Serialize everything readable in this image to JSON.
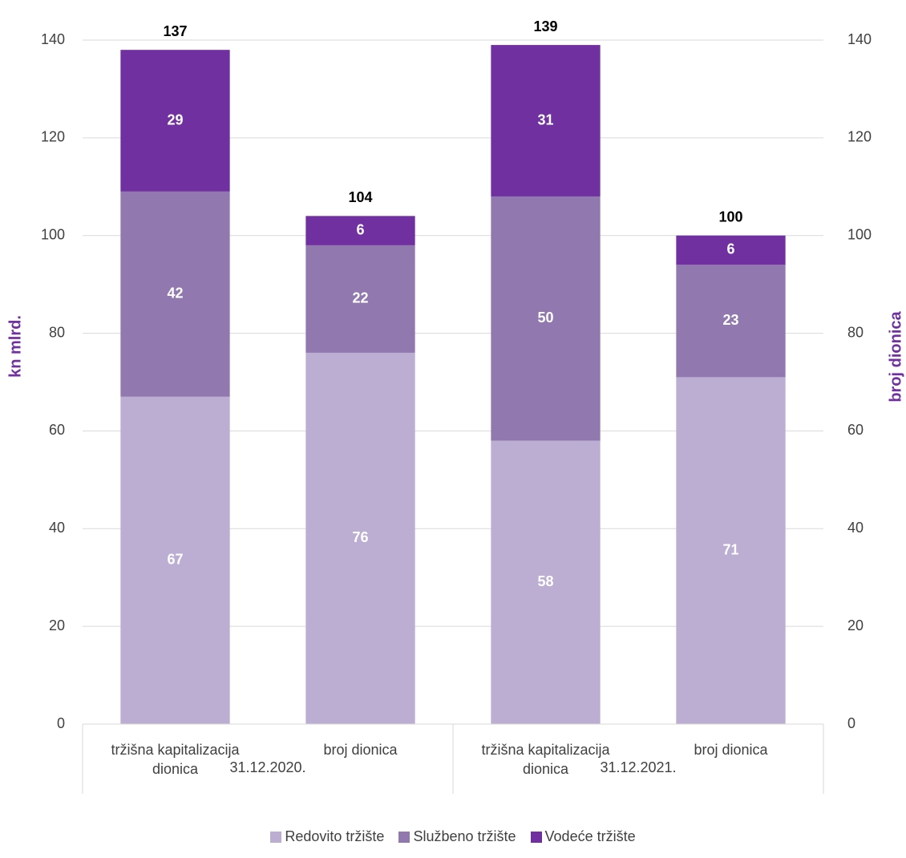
{
  "chart_data": {
    "type": "stacked-bar",
    "categories": [
      "tržišna kapitalizacija dionica",
      "broj dionica",
      "tržišna kapitalizacija dionica",
      "broj dionica"
    ],
    "groups": [
      "31.12.2020.",
      "31.12.2021."
    ],
    "series": [
      {
        "name": "Redovito tržište",
        "color": "#bcaed3",
        "values": [
          67,
          76,
          58,
          71
        ]
      },
      {
        "name": "Službeno tržište",
        "color": "#9179af",
        "values": [
          42,
          22,
          50,
          23
        ]
      },
      {
        "name": "Vodeće tržište",
        "color": "#7030a0",
        "values": [
          29,
          6,
          31,
          6
        ]
      }
    ],
    "totals": [
      137,
      104,
      139,
      100
    ],
    "ylabel": "kn mlrd.",
    "y2label": "broj dionica",
    "ylim": [
      0,
      140
    ],
    "yticks": [
      0,
      20,
      40,
      60,
      80,
      100,
      120,
      140
    ],
    "y2lim": [
      0,
      140
    ],
    "y2ticks": [
      0,
      20,
      40,
      60,
      80,
      100,
      120,
      140
    ],
    "grid": true,
    "legend": "bottom"
  }
}
